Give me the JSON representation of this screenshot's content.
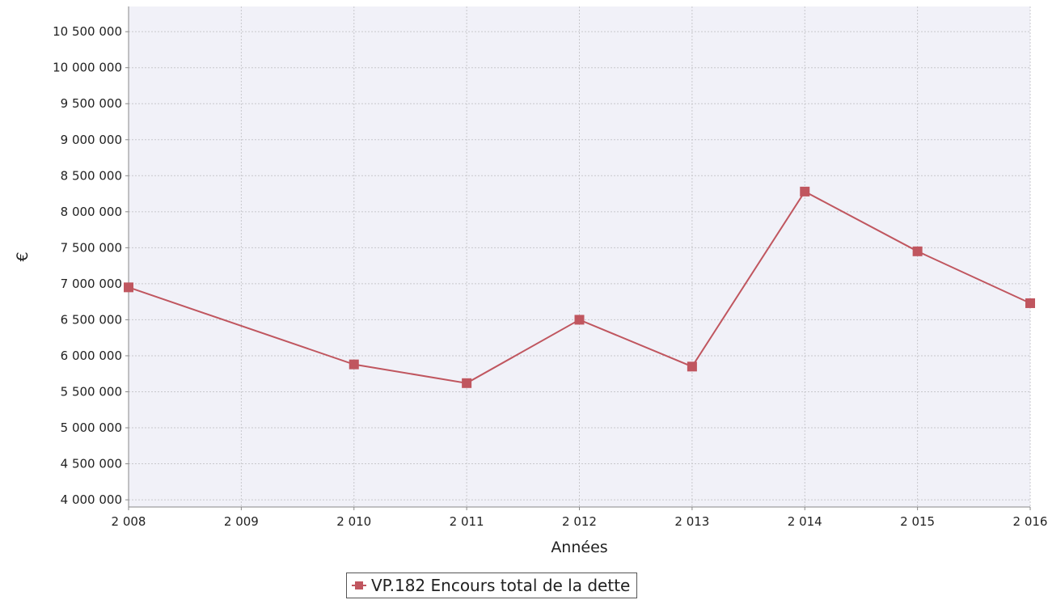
{
  "chart_data": {
    "type": "line",
    "title": "",
    "xlabel": "Années",
    "ylabel": "€",
    "x": [
      2008,
      2009,
      2010,
      2011,
      2012,
      2013,
      2014,
      2015,
      2016
    ],
    "x_tick_labels": [
      "2 008",
      "2 009",
      "2 010",
      "2 011",
      "2 012",
      "2 013",
      "2 014",
      "2 015",
      "2 016"
    ],
    "y_ticks": [
      4000000,
      4500000,
      5000000,
      5500000,
      6000000,
      6500000,
      7000000,
      7500000,
      8000000,
      8500000,
      9000000,
      9500000,
      10000000,
      10500000
    ],
    "y_tick_labels": [
      "4 000 000",
      "4 500 000",
      "5 000 000",
      "5 500 000",
      "6 000 000",
      "6 500 000",
      "7 000 000",
      "7 500 000",
      "8 000 000",
      "8 500 000",
      "9 000 000",
      "9 500 000",
      "10 000 000",
      "10 500 000"
    ],
    "ylim": [
      3900000,
      10850000
    ],
    "xlim": [
      2008,
      2016
    ],
    "grid": true,
    "legend_position": "bottom-center",
    "series": [
      {
        "name": "VP.182 Encours total de la dette",
        "color": "#c0565f",
        "marker": "square",
        "points": [
          {
            "x": 2008,
            "y": 6950000
          },
          {
            "x": 2010,
            "y": 5880000
          },
          {
            "x": 2011,
            "y": 5620000
          },
          {
            "x": 2012,
            "y": 6500000
          },
          {
            "x": 2013,
            "y": 5850000
          },
          {
            "x": 2014,
            "y": 8280000
          },
          {
            "x": 2015,
            "y": 7450000
          },
          {
            "x": 2016,
            "y": 6730000
          }
        ]
      }
    ]
  },
  "legend": {
    "label": "VP.182 Encours total de la dette"
  },
  "colors": {
    "plot_background": "#f1f1f8",
    "gridline": "#c8c8cc",
    "axis": "#888888",
    "series": "#c0565f"
  }
}
